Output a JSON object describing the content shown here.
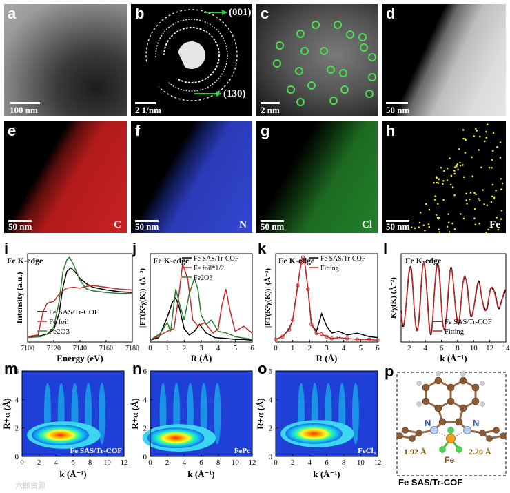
{
  "panels": {
    "a": {
      "label": "a",
      "scale": "100 nm"
    },
    "b": {
      "label": "b",
      "scale": "2 1/nm",
      "rings": [
        "(001)",
        "(130)"
      ]
    },
    "c": {
      "label": "c",
      "scale": "2 nm"
    },
    "d": {
      "label": "d",
      "scale": "50 nm"
    },
    "e": {
      "label": "e",
      "scale": "50 nm",
      "element": "C",
      "color": "#d92020"
    },
    "f": {
      "label": "f",
      "scale": "50 nm",
      "element": "N",
      "color": "#3346d8"
    },
    "g": {
      "label": "g",
      "scale": "50 nm",
      "element": "Cl",
      "color": "#2fc23a"
    },
    "h": {
      "label": "h",
      "scale": "50 nm",
      "element": "Fe",
      "color": "#e4e23a"
    }
  },
  "chart_data": [
    {
      "id": "i",
      "type": "line",
      "title": "Fe K-edge",
      "xlabel": "Energy (eV)",
      "ylabel": "Intensity (a.u.)",
      "xlim": [
        7100,
        7180
      ],
      "xticks": [
        7100,
        7120,
        7140,
        7160,
        7180
      ],
      "series": [
        {
          "name": "Fe SAS/Tr-COF",
          "color": "#000000",
          "x": [
            7100,
            7110,
            7115,
            7120,
            7124,
            7127,
            7130,
            7133,
            7136,
            7140,
            7145,
            7150,
            7160,
            7170,
            7180
          ],
          "y": [
            0.06,
            0.07,
            0.09,
            0.14,
            0.32,
            0.62,
            0.8,
            0.84,
            0.8,
            0.72,
            0.66,
            0.62,
            0.59,
            0.57,
            0.56
          ]
        },
        {
          "name": "Fe foil",
          "color": "#c62828",
          "x": [
            7100,
            7108,
            7110,
            7112,
            7115,
            7120,
            7125,
            7130,
            7135,
            7140,
            7145,
            7150,
            7160,
            7170,
            7180
          ],
          "y": [
            0.06,
            0.08,
            0.22,
            0.35,
            0.44,
            0.46,
            0.56,
            0.61,
            0.62,
            0.61,
            0.63,
            0.64,
            0.62,
            0.6,
            0.59
          ]
        },
        {
          "name": "Fe2O3",
          "color": "#2e7d32",
          "x": [
            7100,
            7110,
            7115,
            7120,
            7124,
            7127,
            7130,
            7132,
            7135,
            7140,
            7145,
            7150,
            7160,
            7170,
            7180
          ],
          "y": [
            0.05,
            0.06,
            0.09,
            0.17,
            0.45,
            0.8,
            0.93,
            0.96,
            0.88,
            0.7,
            0.6,
            0.58,
            0.56,
            0.55,
            0.55
          ]
        }
      ]
    },
    {
      "id": "j",
      "type": "line",
      "title": "Fe K-edge",
      "xlabel": "R (Å)",
      "ylabel": "|FT(K²χ(K))| (Å⁻³)",
      "xlim": [
        0,
        6
      ],
      "xticks": [
        0,
        1,
        2,
        3,
        4,
        5,
        6
      ],
      "series": [
        {
          "name": "Fe SAS/Tr-COF",
          "color": "#000000",
          "x": [
            0,
            0.5,
            1.0,
            1.3,
            1.5,
            1.7,
            2.0,
            2.3,
            2.6,
            2.9,
            3.3,
            3.8,
            4.5,
            5.0,
            5.5,
            6.0
          ],
          "y": [
            0.02,
            0.05,
            0.28,
            0.45,
            0.5,
            0.4,
            0.15,
            0.08,
            0.12,
            0.2,
            0.1,
            0.05,
            0.04,
            0.03,
            0.03,
            0.02
          ]
        },
        {
          "name": "Fe foil*1/2",
          "color": "#c62828",
          "x": [
            0,
            0.6,
            1.0,
            1.4,
            1.7,
            1.9,
            2.2,
            2.5,
            2.8,
            3.2,
            3.7,
            4.0,
            4.2,
            4.45,
            4.7,
            5.0,
            5.5,
            6.0
          ],
          "y": [
            0.02,
            0.08,
            0.12,
            0.15,
            0.55,
            0.88,
            0.72,
            0.25,
            0.18,
            0.22,
            0.1,
            0.15,
            0.4,
            0.6,
            0.35,
            0.12,
            0.18,
            0.1
          ]
        },
        {
          "name": "Fe2O3",
          "color": "#2e7d32",
          "x": [
            0,
            0.6,
            1.0,
            1.2,
            1.5,
            1.7,
            2.0,
            2.3,
            2.6,
            2.8,
            3.0,
            3.3,
            3.6,
            4.0,
            4.5,
            5.0,
            6.0
          ],
          "y": [
            0.02,
            0.1,
            0.22,
            0.12,
            0.6,
            0.45,
            0.25,
            0.55,
            0.72,
            0.6,
            0.3,
            0.2,
            0.25,
            0.12,
            0.1,
            0.06,
            0.03
          ]
        }
      ]
    },
    {
      "id": "k",
      "type": "line",
      "title": "Fe K-edge",
      "xlabel": "R (Å)",
      "ylabel": "|FT(K²χ(K))| (Å⁻³)",
      "xlim": [
        0,
        6
      ],
      "xticks": [
        0,
        1,
        2,
        3,
        4,
        5,
        6
      ],
      "series": [
        {
          "name": "Fe SAS/Tr-COF",
          "color": "#000000",
          "x": [
            0,
            0.4,
            0.8,
            1.0,
            1.3,
            1.5,
            1.6,
            1.7,
            1.9,
            2.1,
            2.4,
            2.7,
            3.0,
            3.3,
            3.7,
            4.2,
            4.8,
            5.5,
            6.0
          ],
          "y": [
            0.03,
            0.06,
            0.15,
            0.25,
            0.65,
            0.9,
            0.96,
            0.92,
            0.6,
            0.2,
            0.12,
            0.32,
            0.18,
            0.1,
            0.12,
            0.08,
            0.1,
            0.06,
            0.05
          ]
        },
        {
          "name": "Fitting",
          "color": "#c62828",
          "x": [
            0,
            0.4,
            0.8,
            1.0,
            1.3,
            1.5,
            1.6,
            1.7,
            1.9,
            2.1,
            2.4,
            2.7,
            3.0,
            3.3,
            3.7,
            4.2,
            4.8,
            5.5,
            6.0
          ],
          "y": [
            0.03,
            0.06,
            0.14,
            0.25,
            0.64,
            0.9,
            0.96,
            0.92,
            0.6,
            0.2,
            0.1,
            0.09,
            0.06,
            0.04,
            0.05,
            0.04,
            0.03,
            0.03,
            0.02
          ]
        }
      ]
    },
    {
      "id": "l",
      "type": "line",
      "title": "Fe K-edge",
      "xlabel": "k (Å⁻¹)",
      "ylabel": "K²χ(K) (Å⁻²)",
      "xlim": [
        1,
        14
      ],
      "xticks": [
        2,
        4,
        6,
        8,
        10,
        12,
        14
      ],
      "series": [
        {
          "name": "Fe SAS/Tr-COF",
          "color": "#000000",
          "pattern": "damped-oscillation"
        },
        {
          "name": "Fitting",
          "color": "#c62828",
          "pattern": "damped-oscillation"
        }
      ]
    },
    {
      "id": "m",
      "type": "heatmap",
      "label": "Fe SAS/Tr-COF",
      "xlabel": "k (Å⁻¹)",
      "ylabel": "R+α (Å)",
      "xlim": [
        0,
        12
      ],
      "ylim": [
        0,
        6
      ],
      "peak": [
        4.5,
        1.5
      ]
    },
    {
      "id": "n",
      "type": "heatmap",
      "label": "FePc",
      "xlabel": "k (Å⁻¹)",
      "ylabel": "R+α (Å)",
      "xlim": [
        0,
        12
      ],
      "ylim": [
        0,
        6
      ],
      "peak": [
        3.0,
        1.3
      ]
    },
    {
      "id": "o",
      "type": "heatmap",
      "label": "FeCl₃",
      "xlabel": "k (Å⁻¹)",
      "ylabel": "R+α (Å)",
      "xlim": [
        0,
        12
      ],
      "ylim": [
        0,
        6
      ],
      "peak": [
        4.5,
        1.6
      ]
    }
  ],
  "structure": {
    "label": "p",
    "title": "Fe SAS/Tr-COF",
    "atom_n": "N",
    "atom_fe": "Fe",
    "bond1": "1.92 Å",
    "bond2": "2.20 Å"
  },
  "watermark": "六郎资源"
}
